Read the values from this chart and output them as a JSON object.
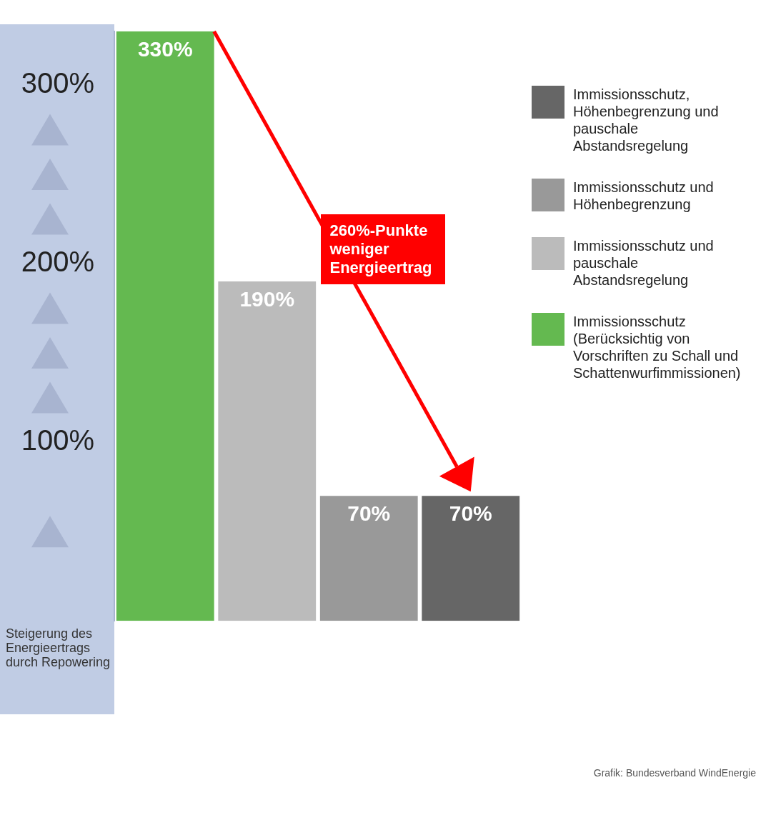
{
  "chart_data": {
    "type": "bar",
    "categories": [
      null,
      null,
      null,
      null
    ],
    "stacked": true,
    "series": [
      {
        "name": "Immissionsschutz, Höhenbegrenzung und pauschale Abstandsregelung",
        "color": "#666666",
        "values": [
          null,
          null,
          null,
          70
        ],
        "value_labels": [
          null,
          null,
          null,
          "70%"
        ]
      },
      {
        "name": "Immissionsschutz und Höhenbegrenzung",
        "color": "#999999",
        "values": [
          null,
          null,
          70,
          null
        ],
        "value_labels": [
          null,
          null,
          "70%",
          null
        ]
      },
      {
        "name": "Immissionsschutz und pauschale Abstandsregelung",
        "color": "#bbbbbb",
        "values": [
          null,
          190,
          null,
          null
        ],
        "value_labels": [
          null,
          "190%",
          null,
          null
        ]
      },
      {
        "name": "Immissionsschutz (Berücksichtig von Vorschriften zu Schall und Schattenwurfimmissionen)",
        "color": "#64b950",
        "values": [
          330,
          null,
          null,
          null
        ],
        "value_labels": [
          "330%",
          null,
          null,
          null
        ]
      }
    ],
    "ylabel": "Steigerung des Energieertrags durch Repowering",
    "ylim": [
      0,
      330
    ],
    "yticks": [
      {
        "value": 100,
        "label": "100%"
      },
      {
        "value": 200,
        "label": "200%"
      },
      {
        "value": 300,
        "label": "300%"
      }
    ],
    "grid": false,
    "legend": "right",
    "annotations": [
      "260%-Punkte weniger Energieertrag",
      "Grafik: Bundesverband WindEnergie"
    ]
  }
}
